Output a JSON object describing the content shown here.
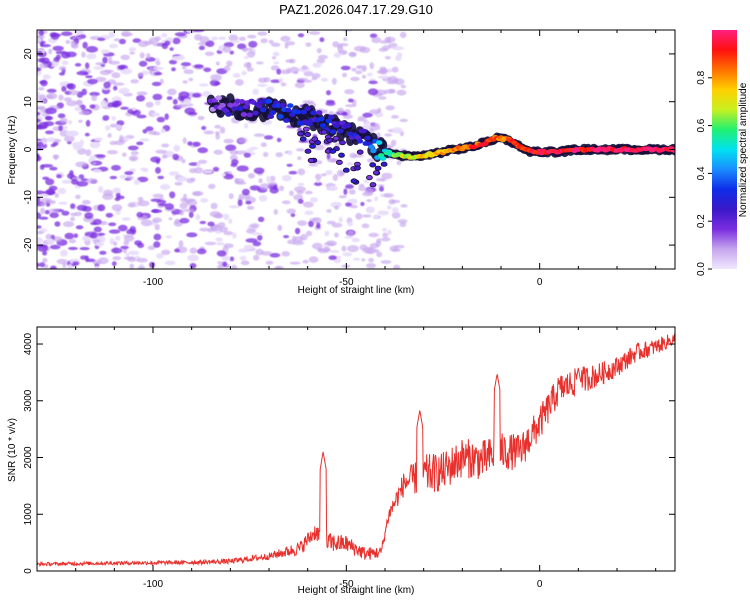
{
  "title": "PAZ1.2026.047.17.29.G10",
  "colors": {
    "signal_line": "#e8302c",
    "frame": "#000000",
    "scatter_purple": "#6a1fd0",
    "colormap": [
      "#f0e8ff",
      "#c6a6ee",
      "#7a2ee0",
      "#3a18c8",
      "#0e2ce8",
      "#1a8cff",
      "#00e2f0",
      "#20f070",
      "#c8f020",
      "#ffd000",
      "#ff7000",
      "#ff1010",
      "#ff2080"
    ]
  },
  "chart_data": [
    {
      "type": "heatmap",
      "name": "spectrogram",
      "xlabel": "Height of straight line (km)",
      "ylabel": "Frequency (Hz)",
      "xlim": [
        -130,
        35
      ],
      "ylim": [
        -25,
        25
      ],
      "xticks": [
        -100,
        -50,
        0
      ],
      "yticks": [
        -20,
        -10,
        0,
        10,
        20
      ],
      "xtick_labels": [
        "-100",
        "-50",
        "0"
      ],
      "ytick_labels": [
        "-20",
        "-10",
        "0",
        "10",
        "20"
      ],
      "ridge": {
        "description": "dominant frequency track",
        "x": [
          -85,
          -80,
          -75,
          -70,
          -65,
          -60,
          -55,
          -50,
          -45,
          -42,
          -38,
          -33,
          -28,
          -22,
          -18,
          -14,
          -11,
          -8,
          -5,
          -2,
          0,
          5,
          10,
          20,
          35
        ],
        "y": [
          9.5,
          9,
          8.5,
          8.5,
          7.5,
          7,
          5.5,
          3.5,
          2,
          0,
          -1,
          -1.5,
          -1,
          0,
          0.5,
          1.5,
          2.5,
          2,
          0.5,
          -0.5,
          -0.5,
          -0.5,
          0,
          0,
          0
        ],
        "amplitude": [
          0.15,
          0.2,
          0.25,
          0.3,
          0.3,
          0.25,
          0.3,
          0.25,
          0.3,
          0.45,
          0.6,
          0.7,
          0.75,
          0.8,
          0.85,
          0.9,
          0.85,
          0.85,
          0.9,
          0.9,
          0.95,
          0.95,
          0.95,
          1.0,
          1.0
        ]
      },
      "noise_region": {
        "x_range": [
          -130,
          -40
        ],
        "y_range": [
          -25,
          25
        ],
        "amplitude_max": 0.15
      }
    },
    {
      "type": "line",
      "name": "snr",
      "xlabel": "Height of straight line (km)",
      "ylabel": "SNR (10 * v/v)",
      "xlim": [
        -130,
        35
      ],
      "ylim": [
        0,
        4300
      ],
      "xticks": [
        -100,
        -50,
        0
      ],
      "yticks": [
        0,
        1000,
        2000,
        3000,
        4000
      ],
      "xtick_labels": [
        "-100",
        "-50",
        "0"
      ],
      "ytick_labels": [
        "0",
        "1000",
        "2000",
        "3000",
        "4000"
      ],
      "trend": {
        "x": [
          -130,
          -110,
          -90,
          -80,
          -70,
          -62,
          -58,
          -55,
          -50,
          -45,
          -41,
          -39,
          -35,
          -30,
          -25,
          -20,
          -15,
          -10,
          -5,
          0,
          5,
          10,
          15,
          20,
          25,
          30,
          35
        ],
        "y": [
          120,
          140,
          150,
          170,
          260,
          400,
          700,
          500,
          480,
          300,
          330,
          1000,
          1550,
          1700,
          1750,
          2000,
          1950,
          2100,
          2100,
          2600,
          3200,
          3350,
          3450,
          3600,
          3850,
          3950,
          4100
        ]
      },
      "noise": {
        "x": [
          -130,
          -90,
          -70,
          -55,
          -45,
          -40,
          -30,
          -15,
          0,
          20,
          35
        ],
        "y": [
          30,
          35,
          60,
          180,
          120,
          100,
          350,
          350,
          300,
          180,
          120
        ]
      },
      "spikes": [
        {
          "x": -56,
          "y": 2100
        },
        {
          "x": -31,
          "y": 2830
        },
        {
          "x": -11,
          "y": 3480
        },
        {
          "x": 10,
          "y": 3580
        }
      ]
    }
  ],
  "colorbar": {
    "label": "Normalized spectral amplitude",
    "range": [
      0,
      1
    ],
    "ticks": [
      0.0,
      0.2,
      0.4,
      0.6,
      0.8
    ],
    "tick_labels": [
      "0.0",
      "0.2",
      "0.4",
      "0.6",
      "0.8"
    ]
  }
}
